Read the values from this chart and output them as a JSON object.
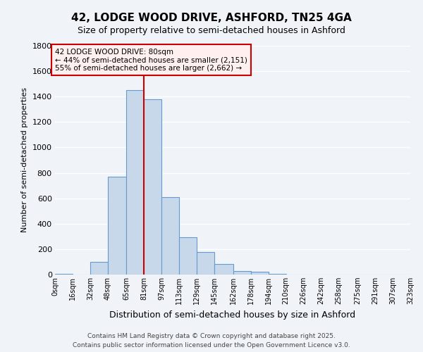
{
  "title": "42, LODGE WOOD DRIVE, ASHFORD, TN25 4GA",
  "subtitle": "Size of property relative to semi-detached houses in Ashford",
  "xlabel": "Distribution of semi-detached houses by size in Ashford",
  "ylabel": "Number of semi-detached properties",
  "bar_left_edges": [
    0,
    16,
    32,
    48,
    65,
    81,
    97,
    113,
    129,
    145,
    162,
    178,
    194,
    210,
    226,
    242,
    258,
    275,
    291,
    307
  ],
  "bar_widths": [
    16,
    16,
    16,
    17,
    16,
    16,
    16,
    16,
    16,
    17,
    16,
    16,
    16,
    16,
    16,
    16,
    17,
    16,
    16,
    16
  ],
  "bar_heights": [
    5,
    0,
    100,
    770,
    1450,
    1380,
    610,
    295,
    175,
    85,
    30,
    20,
    5,
    2,
    1,
    1,
    0,
    0,
    0,
    0
  ],
  "bar_color": "#c8d8eb",
  "bar_edge_color": "#6699cc",
  "x_tick_labels": [
    "0sqm",
    "16sqm",
    "32sqm",
    "48sqm",
    "65sqm",
    "81sqm",
    "97sqm",
    "113sqm",
    "129sqm",
    "145sqm",
    "162sqm",
    "178sqm",
    "194sqm",
    "210sqm",
    "226sqm",
    "242sqm",
    "258sqm",
    "275sqm",
    "291sqm",
    "307sqm",
    "323sqm"
  ],
  "x_tick_positions": [
    0,
    16,
    32,
    48,
    65,
    81,
    97,
    113,
    129,
    145,
    162,
    178,
    194,
    210,
    226,
    242,
    258,
    275,
    291,
    307,
    323
  ],
  "ylim": [
    0,
    1800
  ],
  "xlim": [
    0,
    323
  ],
  "property_line_x": 81,
  "property_line_color": "#cc0000",
  "annotation_title": "42 LODGE WOOD DRIVE: 80sqm",
  "annotation_line1": "← 44% of semi-detached houses are smaller (2,151)",
  "annotation_line2": "55% of semi-detached houses are larger (2,662) →",
  "annotation_box_color": "#fff0f0",
  "annotation_box_edge": "#cc0000",
  "background_color": "#f0f4f8",
  "grid_color": "#ffffff",
  "yticks": [
    0,
    200,
    400,
    600,
    800,
    1000,
    1200,
    1400,
    1600,
    1800
  ],
  "footer_line1": "Contains HM Land Registry data © Crown copyright and database right 2025.",
  "footer_line2": "Contains public sector information licensed under the Open Government Licence v3.0."
}
